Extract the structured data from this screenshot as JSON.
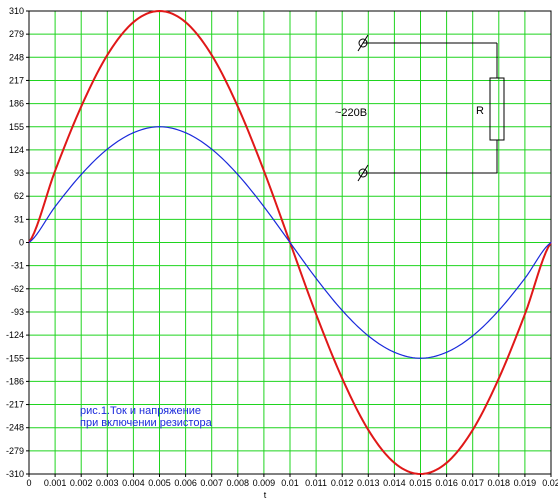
{
  "chart_data": {
    "type": "line",
    "xlabel": "t",
    "ylim": [
      -310,
      310
    ],
    "xlim": [
      0,
      0.02
    ],
    "y_ticks": [
      310,
      279,
      248,
      217,
      186,
      155,
      124,
      93,
      62,
      31,
      0,
      -31,
      -62,
      -93,
      -124,
      -155,
      -186,
      -217,
      -248,
      -279,
      -310
    ],
    "x_ticks": [
      "0",
      "0.001",
      "0.002",
      "0.003",
      "0.004",
      "0.005",
      "0.006",
      "0.007",
      "0.008",
      "0.009",
      "0.01",
      "0.011",
      "0.012",
      "0.013",
      "0.014",
      "0.015",
      "0.016",
      "0.017",
      "0.018",
      "0.019",
      "0.02"
    ],
    "x_tick_values": [
      0,
      0.001,
      0.002,
      0.003,
      0.004,
      0.005,
      0.006,
      0.007,
      0.008,
      0.009,
      0.01,
      0.011,
      0.012,
      0.013,
      0.014,
      0.015,
      0.016,
      0.017,
      0.018,
      0.019,
      0.02
    ],
    "grid": true,
    "series": [
      {
        "color": "#e01818",
        "x": [
          0,
          0.001,
          0.002,
          0.003,
          0.004,
          0.005,
          0.006,
          0.007,
          0.008,
          0.009,
          0.01,
          0.011,
          0.012,
          0.013,
          0.014,
          0.015,
          0.016,
          0.017,
          0.018,
          0.019,
          0.02
        ],
        "values": [
          0,
          96,
          182,
          251,
          295,
          310,
          295,
          251,
          182,
          96,
          0,
          -96,
          -182,
          -251,
          -295,
          -310,
          -295,
          -251,
          -182,
          -96,
          0
        ]
      },
      {
        "color": "#1a2adb",
        "x": [
          0,
          0.001,
          0.002,
          0.003,
          0.004,
          0.005,
          0.006,
          0.007,
          0.008,
          0.009,
          0.01,
          0.011,
          0.012,
          0.013,
          0.014,
          0.015,
          0.016,
          0.017,
          0.018,
          0.019,
          0.02
        ],
        "values": [
          0,
          48,
          91,
          125,
          147,
          155,
          147,
          125,
          91,
          48,
          0,
          -48,
          -91,
          -125,
          -147,
          -155,
          -147,
          -125,
          -91,
          -48,
          0
        ]
      }
    ],
    "annotations": {
      "voltage": "~220В",
      "resistor": "R",
      "caption_line1": "рис.1.Ток и напряжение",
      "caption_line2": "при включении резистора"
    }
  },
  "colors": {
    "grid": "#1fd41f",
    "axis": "#000000"
  }
}
